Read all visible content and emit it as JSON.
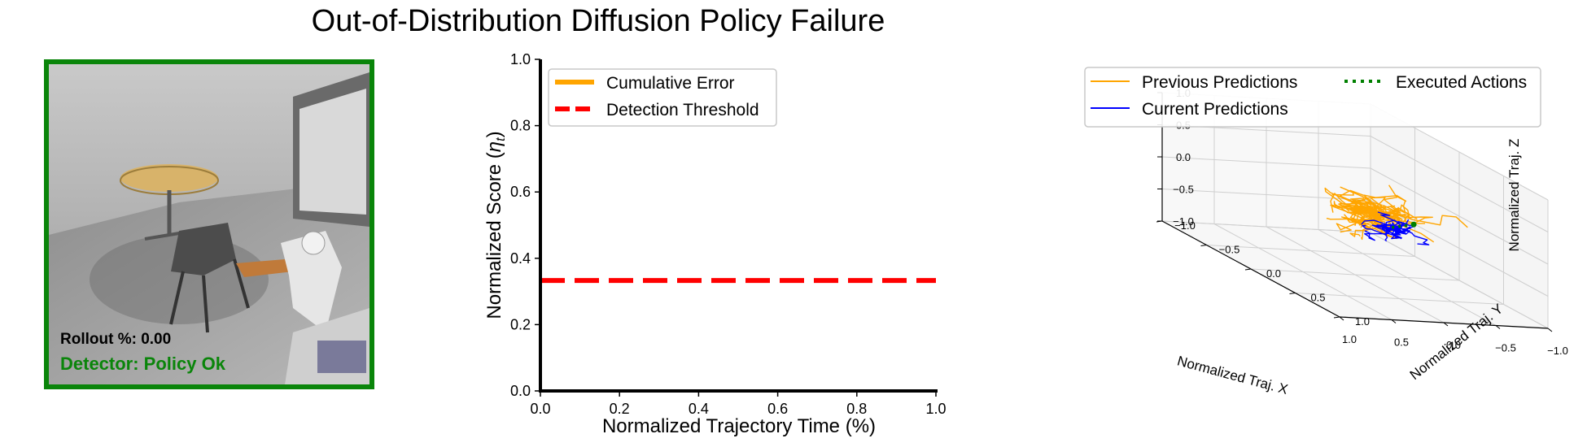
{
  "title": "Out-of-Distribution Diffusion Policy Failure",
  "colors": {
    "cumulative_error": "#ffa500",
    "threshold": "#ff0000",
    "previous_predictions": "#ffa500",
    "current_predictions": "#0000ff",
    "executed_actions": "#008000",
    "detector_ok": "#0a850a"
  },
  "camera_panel": {
    "rollout_text": "Rollout %: 0.00",
    "detector_text": "Detector: Policy Ok"
  },
  "chart_data": [
    {
      "type": "line",
      "title": "",
      "xlabel": "Normalized Trajectory Time (%)",
      "ylabel": "Normalized Score (",
      "ylabel_symbol": "η",
      "ylabel_subscript": "t",
      "ylabel_close": ")",
      "xlim": [
        0.0,
        1.0
      ],
      "ylim": [
        0.0,
        1.0
      ],
      "xticks": [
        "0.0",
        "0.2",
        "0.4",
        "0.6",
        "0.8",
        "1.0"
      ],
      "yticks": [
        "0.0",
        "0.2",
        "0.4",
        "0.6",
        "0.8",
        "1.0"
      ],
      "grid": false,
      "legend_position": "top-left",
      "series": [
        {
          "name": "Cumulative Error",
          "style": "solid",
          "x": [],
          "y": []
        },
        {
          "name": "Detection Threshold",
          "style": "dashed",
          "x": [
            0.0,
            1.0
          ],
          "y": [
            0.333,
            0.333
          ]
        }
      ]
    },
    {
      "type": "line3d",
      "title": "",
      "xlabel": "Normalized Traj. X",
      "ylabel": "Normalized Traj. Y",
      "zlabel": "Normalized Traj. Z",
      "xlim": [
        -1.0,
        1.0
      ],
      "ylim": [
        -1.0,
        1.0
      ],
      "zlim": [
        -1.0,
        1.0
      ],
      "xticks": [
        "−1.0",
        "−0.5",
        "0.0",
        "0.5",
        "1.0"
      ],
      "yticks": [
        "−1.0",
        "−0.5",
        "0.0",
        "0.5",
        "1.0"
      ],
      "zticks": [
        "−1.0",
        "−0.5",
        "0.0",
        "0.5",
        "1.0"
      ],
      "grid": true,
      "legend_position": "top",
      "legend": [
        "Previous Predictions",
        "Current Predictions",
        "Executed Actions"
      ],
      "series": [
        {
          "name": "Previous Predictions",
          "style": "solid",
          "center": [
            -0.15,
            0.05,
            0.0
          ],
          "spread": [
            0.35,
            0.3,
            0.25
          ],
          "count": 40
        },
        {
          "name": "Current Predictions",
          "style": "solid",
          "center": [
            0.05,
            0.45,
            0.05
          ],
          "spread": [
            0.2,
            0.15,
            0.12
          ],
          "count": 20
        },
        {
          "name": "Executed Actions",
          "style": "dotted",
          "points": [
            [
              -0.35,
              0.25,
              0.0
            ],
            [
              -0.2,
              0.3,
              0.0
            ],
            [
              -0.05,
              0.35,
              0.0
            ]
          ]
        }
      ]
    }
  ]
}
